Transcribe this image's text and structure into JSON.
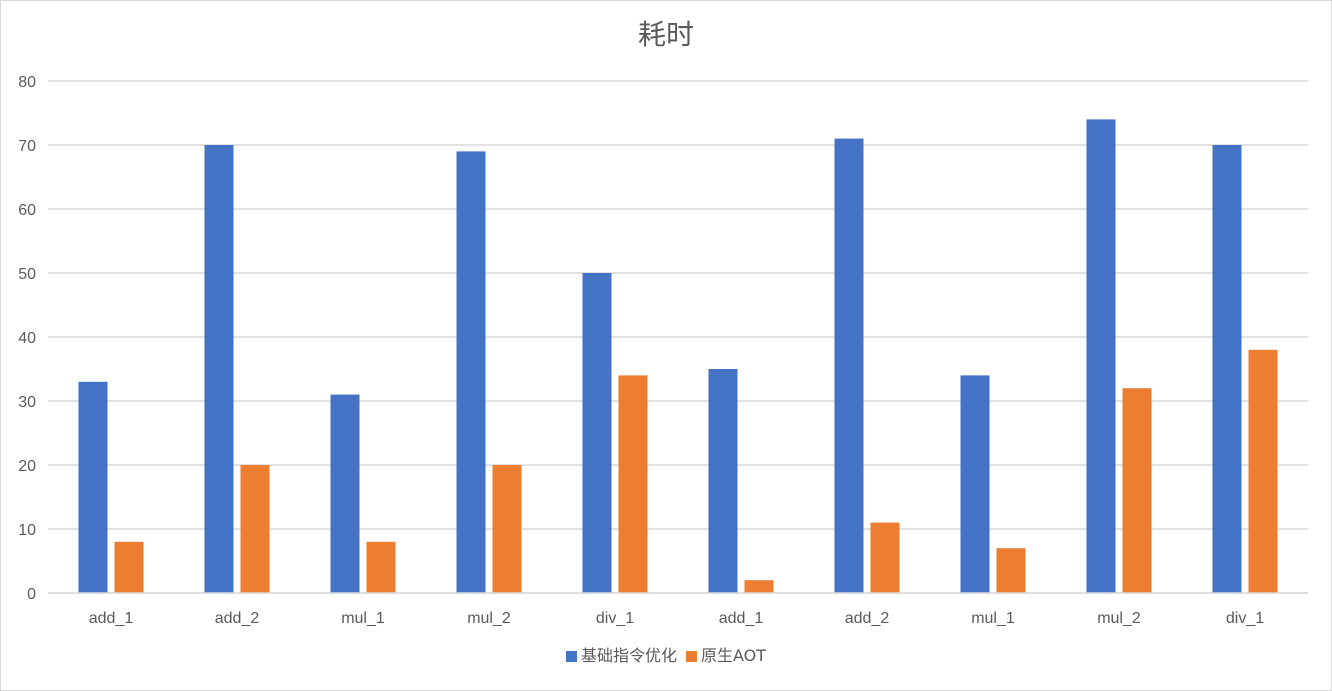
{
  "chart_data": {
    "type": "bar",
    "title": "耗时",
    "categories": [
      "add_1",
      "add_2",
      "mul_1",
      "mul_2",
      "div_1",
      "add_1",
      "add_2",
      "mul_1",
      "mul_2",
      "div_1"
    ],
    "series": [
      {
        "name": "基础指令优化",
        "color": "#4472C4",
        "values": [
          33,
          70,
          31,
          69,
          50,
          35,
          71,
          34,
          74,
          70
        ]
      },
      {
        "name": "原生AOT",
        "color": "#ED7D31",
        "values": [
          8,
          20,
          8,
          20,
          34,
          2,
          11,
          7,
          32,
          38
        ]
      }
    ],
    "ylim": [
      0,
      80
    ],
    "yticks": [
      0,
      10,
      20,
      30,
      40,
      50,
      60,
      70,
      80
    ],
    "grid": true,
    "legend_position": "bottom"
  }
}
